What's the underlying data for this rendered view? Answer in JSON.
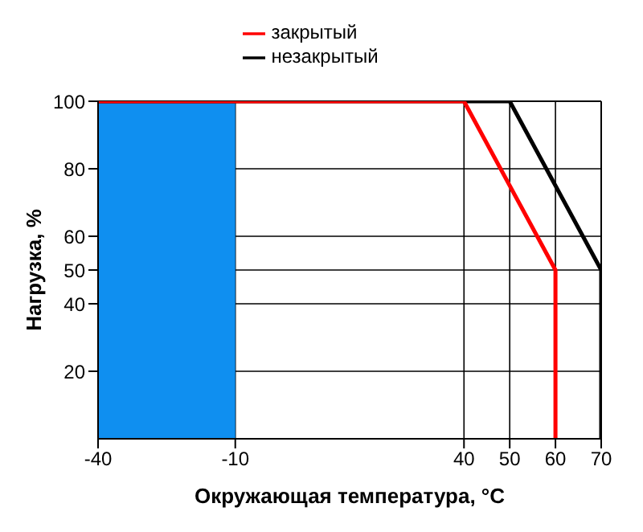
{
  "chart_data": {
    "type": "line",
    "xlabel": "Окружающая температура, °C",
    "ylabel": "Нагрузка, %",
    "series": [
      {
        "name": "закрытый",
        "color": "#ff0000",
        "x": [
          -40,
          40,
          60,
          60
        ],
        "values": [
          100,
          100,
          50,
          0
        ]
      },
      {
        "name": "незакрытый",
        "color": "#000000",
        "x": [
          -40,
          50,
          70,
          70
        ],
        "values": [
          100,
          100,
          50,
          0
        ]
      }
    ],
    "xlim": [
      -40,
      70
    ],
    "xticks": [
      -40,
      -10,
      40,
      50,
      60,
      70
    ],
    "ylim": [
      0,
      100
    ],
    "yticks": [
      20,
      40,
      50,
      60,
      80,
      100
    ],
    "bands": [
      {
        "axis": "x",
        "from": -40,
        "to": -10,
        "color": "#0f8ff0"
      }
    ],
    "grid": true,
    "legend": "top",
    "marker": "none",
    "line_style": "solid"
  }
}
